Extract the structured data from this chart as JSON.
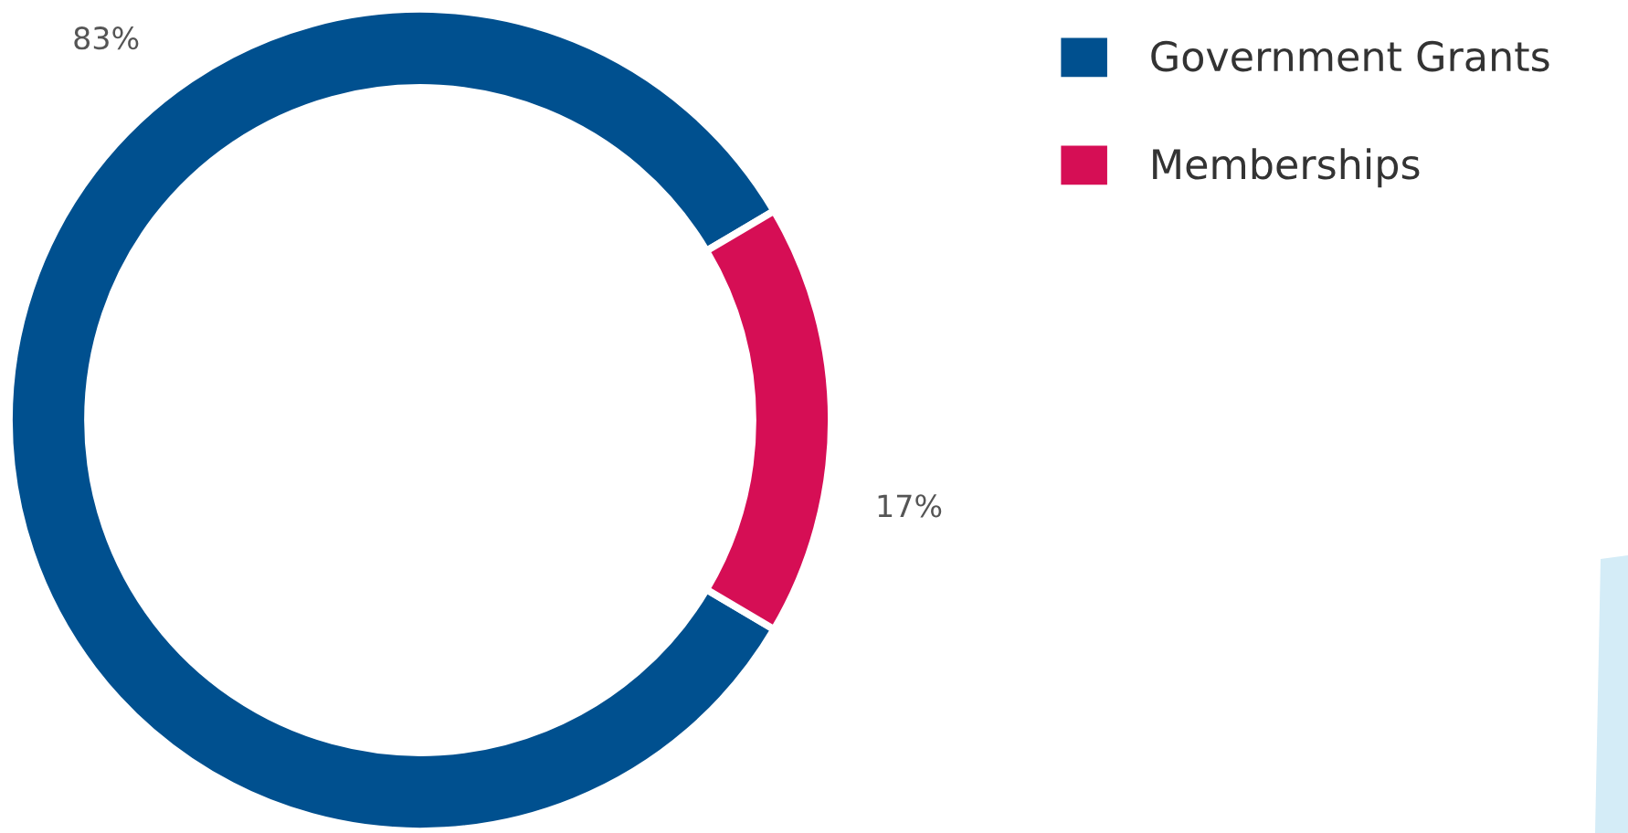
{
  "chart_data": {
    "type": "donut",
    "categories": [
      "Government Grants",
      "Memberships"
    ],
    "values": [
      83,
      17
    ],
    "colors": [
      "#00508f",
      "#d60e55"
    ],
    "value_labels": [
      "83%",
      "17%"
    ],
    "legend": "top right"
  }
}
